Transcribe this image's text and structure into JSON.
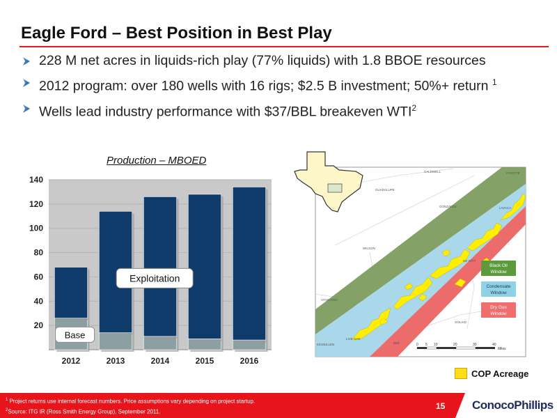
{
  "slide": {
    "title": "Eagle Ford – Best Position in Best Play",
    "bullets": [
      {
        "text": "228 M net acres in liquids-rich play (77% liquids) with 1.8 BBOE resources",
        "sup": ""
      },
      {
        "text": "2012 program: over 180 wells with 16 rigs; $2.5 B investment; 50%+ return ",
        "sup": "1"
      },
      {
        "text": "Wells lead industry performance with $37/BBL breakeven WTI",
        "sup": "2"
      }
    ],
    "page_number": "15",
    "logo_text": "ConocoPhillips"
  },
  "footnotes": [
    {
      "sup": "1",
      "text": "Project returns use internal forecast numbers. Price assumptions vary depending on project startup."
    },
    {
      "sup": "2",
      "text": "Source: ITG IR (Ross Smith Energy Group), September 2011."
    }
  ],
  "chart_data": {
    "type": "bar",
    "title": "Production – MBOED",
    "categories": [
      "2012",
      "2013",
      "2014",
      "2015",
      "2016"
    ],
    "series": [
      {
        "name": "Base",
        "values": [
          26,
          14,
          11,
          9,
          8
        ],
        "color": "#8c9fa3"
      },
      {
        "name": "Exploitation",
        "values": [
          42,
          100,
          115,
          119,
          126
        ],
        "color": "#0f3b6b"
      }
    ],
    "totals": [
      68,
      114,
      126,
      128,
      134
    ],
    "yticks": [
      20,
      40,
      60,
      80,
      100,
      120,
      140
    ],
    "ylim": [
      0,
      140
    ],
    "annotations": [
      "Exploitation",
      "Base"
    ]
  },
  "map": {
    "county_labels": [
      "CALDWELL",
      "GUADALUPE",
      "FAYETTE",
      "GONZALES",
      "LAVACA",
      "WILSON",
      "DE WITT",
      "ATASCOSA",
      "GOLIAD",
      "LIVE OAK",
      "MCMULLEN",
      "BEE"
    ],
    "windows": [
      {
        "label": "Black Oil Window",
        "color": "#5c9a3b"
      },
      {
        "label": "Condensate Window",
        "color": "#8fd1e6"
      },
      {
        "label": "Dry Gas Window",
        "color": "#f06e6e"
      }
    ],
    "scale_ticks": [
      "0",
      "5",
      "10",
      "20",
      "30",
      "40"
    ],
    "scale_unit": "Miles",
    "legend_label": "COP Acreage",
    "colors": {
      "black_oil": "#7a9a5b",
      "condensate": "#a8d8ea",
      "dry_gas": "#ec6b6b",
      "acreage": "#ffee00"
    }
  }
}
